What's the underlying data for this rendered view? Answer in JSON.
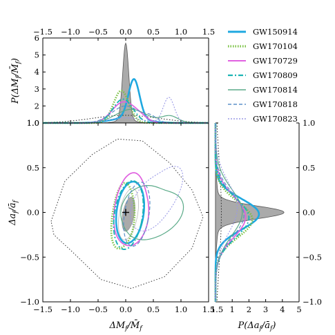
{
  "chart_data": {
    "type": "scatter",
    "description_free": true,
    "series": [
      {
        "name": "GW150914",
        "color": "#1fa8e0",
        "style": "solid-thick"
      },
      {
        "name": "GW170104",
        "color": "#7ac142",
        "style": "dotted-thick"
      },
      {
        "name": "GW170729",
        "color": "#e060e0",
        "style": "solid"
      },
      {
        "name": "GW170809",
        "color": "#1ab3b3",
        "style": "dashdot"
      },
      {
        "name": "GW170814",
        "color": "#5aaa88",
        "style": "solid-thin"
      },
      {
        "name": "GW170818",
        "color": "#5a8fc8",
        "style": "dashed"
      },
      {
        "name": "GW170823",
        "color": "#9999e6",
        "style": "dotted"
      }
    ],
    "top_panel": {
      "ylabel": "P(ΔM_f/M̄_f)",
      "xlim": [
        -1.5,
        1.5
      ],
      "ylim": [
        1.0,
        6
      ],
      "yticks": [
        "1.0",
        "2",
        "3",
        "4",
        "5",
        "6"
      ],
      "xticks": [
        "−1.5",
        "−1.0",
        "−0.5",
        "0.0",
        "0.5",
        "1.0",
        "1.5"
      ],
      "peaks": [
        {
          "name": "combined",
          "x": 0.0,
          "y": 5.5
        },
        {
          "name": "GW150914",
          "x": 0.15,
          "y": 3.3
        },
        {
          "name": "GW170104",
          "x": -0.1,
          "y": 2.9
        },
        {
          "name": "GW170823",
          "x": 0.78,
          "y": 2.5
        }
      ]
    },
    "main_panel": {
      "xlabel": "ΔM_f/M̄_f",
      "ylabel": "Δa_f/ā_f",
      "xlim": [
        -1.5,
        1.5
      ],
      "ylim": [
        -1.0,
        1.0
      ],
      "xticks": [
        "−1.5",
        "−1.0",
        "−0.5",
        "0.0",
        "0.5",
        "1.0",
        "1.5"
      ],
      "yticks": [
        "−1.0",
        "−0.5",
        "0.0",
        "0.5",
        "1.0"
      ],
      "marker": {
        "x": 0.0,
        "y": 0.0,
        "symbol": "+"
      }
    },
    "right_panel": {
      "xlabel": "P(Δa_f/ā_f)",
      "xlim": [
        0,
        5
      ],
      "xticks": [
        "1.5",
        "1",
        "2",
        "3",
        "4",
        "5"
      ],
      "yticks": [
        "1.0",
        "0.5",
        "0.0",
        "−0.5",
        "−1.0"
      ],
      "peak": {
        "name": "combined",
        "x": 4.0,
        "y": 0.0
      }
    }
  }
}
